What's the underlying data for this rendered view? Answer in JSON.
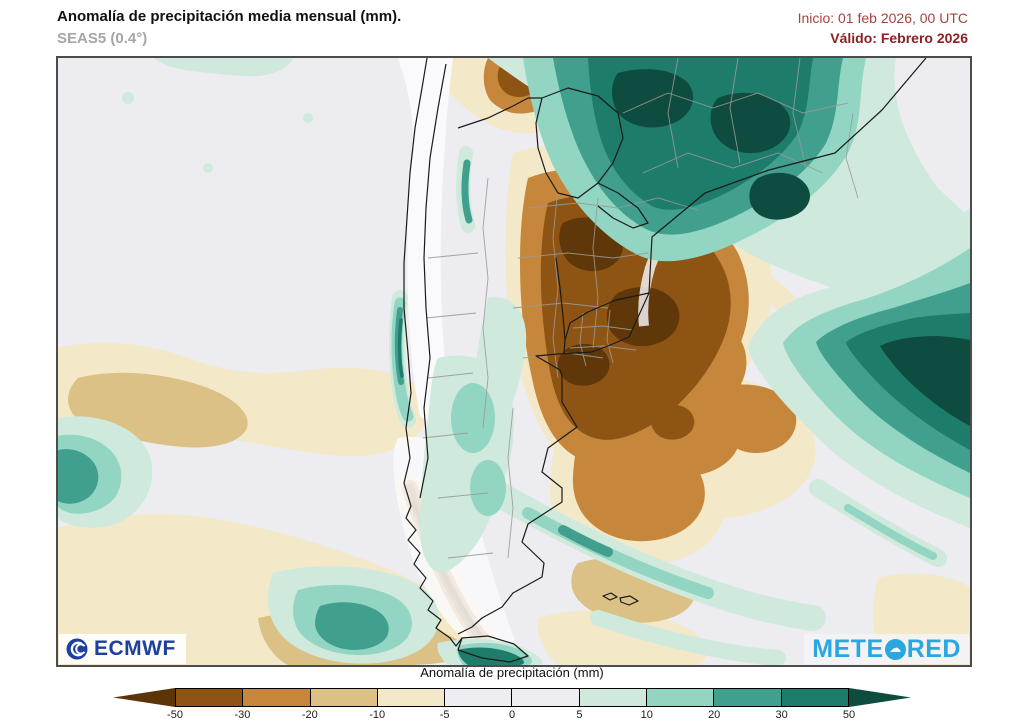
{
  "header": {
    "title": "Anomalía de precipitación media mensual (mm).",
    "subtitle": "SEAS5 (0.4°)",
    "init": "Inicio: 01 feb 2026, 00 UTC",
    "valid": "Válido: Febrero 2026"
  },
  "logos": {
    "ecmwf": "ECMWF",
    "ecmwf_blue": "#1d3f9e",
    "meteored_pre": "METE",
    "meteored_post": "RED",
    "meteored_o_glyph": "☁",
    "meteored_blue": "#2aa7e0"
  },
  "legend": {
    "title": "Anomalía de precipitación (mm)",
    "tick_values": [
      "-50",
      "-30",
      "-20",
      "-10",
      "-5",
      "0",
      "5",
      "10",
      "20",
      "30",
      "50"
    ],
    "segment_colors": [
      "#8e5413",
      "#c6873c",
      "#dcc187",
      "#f3e9c8",
      "#ededf2",
      "#ededf2",
      "#cfeadd",
      "#93d5c3",
      "#41a08d",
      "#1e7c6b"
    ],
    "arrow_left_color": "#5b3507",
    "arrow_right_color": "#0e4c3f"
  },
  "map_features": {
    "projection_area": "Southern South America (Chile, Argentina, Uruguay, Paraguay, S Brazil) and adjacent oceans",
    "positive_anomaly": "Strong positive (teal, >30–50 mm) over SE Brazil and the adjacent South Atlantic; teal band along central Chile Andes and southern Patagonia tip; scattered teal streaks over central Argentina and the far South Atlantic",
    "negative_anomaly": "Strong negative (brown, < -30 mm) over NE Argentina, Uruguay and Rio Grande do Sul; dark brown along the southern Chilean Andes; brown band near the eastern map edge and offshore Buenos Aires",
    "neutral": "Pale grey (−5 to +5 mm) over most of the Pacific and much of Patagonia"
  }
}
